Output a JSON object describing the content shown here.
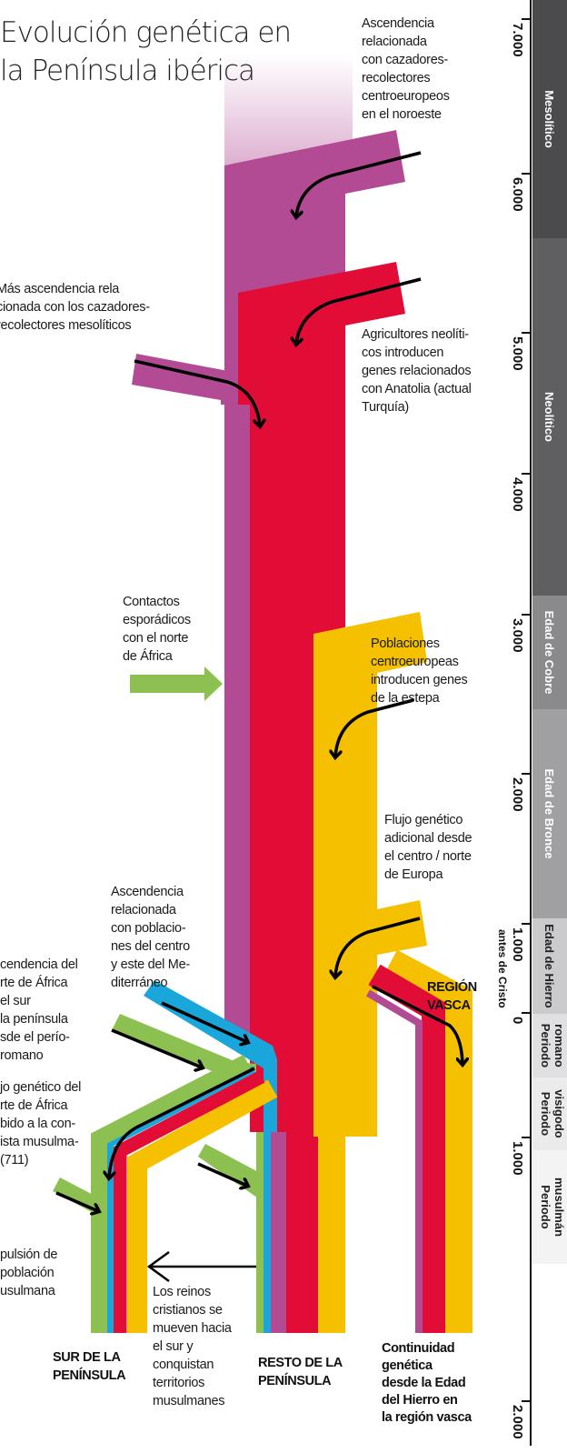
{
  "title": [
    "Evolución genética en",
    "la Península ibérica"
  ],
  "colors": {
    "mesolithic_hunters": "#b24b94",
    "neolithic_farmers": "#e20d36",
    "steppe": "#f5c000",
    "mediterranean": "#19a6da",
    "north_africa": "#8cc152"
  },
  "notes": {
    "hunters_northwest": [
      "Ascendencia",
      "relacionada",
      "con cazadores-",
      "recolectores",
      "centroeuropeos",
      "en el noroeste"
    ],
    "more_mesolithic": [
      "Más ascendencia rela",
      "cionada con los cazadores-",
      "recolectores mesolíticos"
    ],
    "neolithic": [
      "Agricultores neolíti-",
      "cos introducen",
      "genes relacionados",
      "con Anatolia (actual",
      "Turquía)"
    ],
    "north_africa_contacts": [
      "Contactos",
      "esporádicos",
      "con el norte",
      "de África"
    ],
    "steppe": [
      "Poblaciones",
      "centroeuropeas",
      "introducen genes",
      "de la estepa"
    ],
    "central_europe": [
      "Flujo genético",
      "adicional desde",
      "el centro / norte",
      "de Europa"
    ],
    "mediterranean": [
      "Ascendencia",
      "relacionada",
      "con poblacio-",
      "nes del centro",
      "y este del Me-",
      "diterráneo"
    ],
    "africa_roman": [
      "cendencia del",
      "rte de África",
      "el sur",
      "la península",
      "sde el perío-",
      "romano"
    ],
    "africa_muslim": [
      "jo genético del",
      "rte de África",
      "bido a la con-",
      "ista musulma-",
      "(711)"
    ],
    "expulsion": [
      "pulsión de",
      "población",
      "usulmana"
    ],
    "reconquista": [
      "Los reinos",
      "cristianos se",
      "mueven hacia",
      "el sur y",
      "conquistan",
      "territorios",
      "musulmanes"
    ]
  },
  "labels": {
    "basque_region": [
      "REGIÓN",
      "VASCA"
    ],
    "south": [
      "SUR DE LA",
      "PENÍNSULA"
    ],
    "rest": [
      "RESTO DE LA",
      "PENÍNSULA"
    ],
    "basque_continuity": [
      "Continuidad",
      "genética",
      "desde la Edad",
      "del Hierro en",
      "la región vasca"
    ]
  },
  "timeline": {
    "ticks": [
      "7.000",
      "6.000",
      "5.000",
      "4.000",
      "3.000",
      "2.000",
      "1.000",
      "antes de Cristo",
      "0",
      "1.000",
      "2.000"
    ],
    "periods": [
      {
        "label": "Mesolítico",
        "color": "#4b4a4c"
      },
      {
        "label": "Neolítico",
        "color": "#5f5e61"
      },
      {
        "label": "Edad de Cobre",
        "color": "#8a898c"
      },
      {
        "label": "Edad de Bronce",
        "color": "#a09fa2"
      },
      {
        "label": "Edad de Hierro",
        "color": "#cbcacd"
      },
      {
        "label": "Periodo romano",
        "color": "#e0e0e2"
      },
      {
        "label": "Periodo visigodo",
        "color": "#ebebec"
      },
      {
        "label": "Periodo musulmán",
        "color": "#f3f3f4"
      }
    ]
  }
}
